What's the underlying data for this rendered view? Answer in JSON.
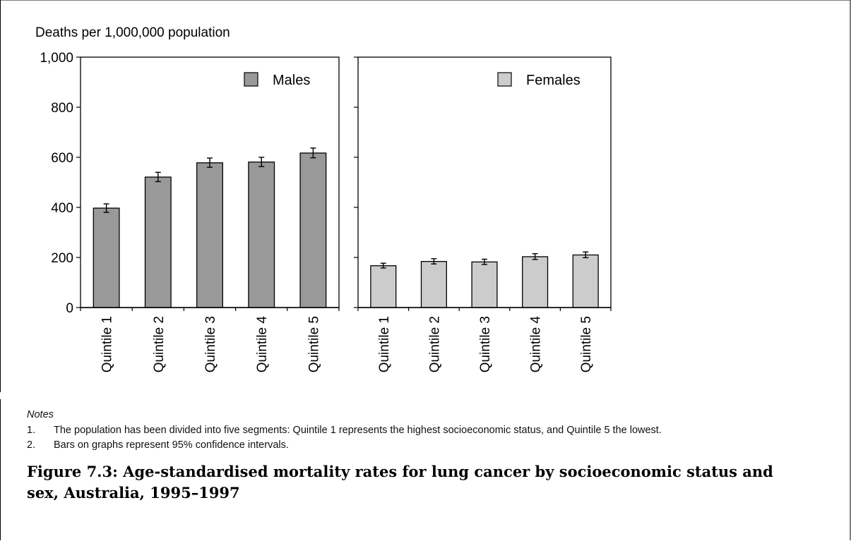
{
  "chart_data": [
    {
      "type": "bar",
      "ylabel": "Deaths per 1,000,000 population",
      "ylim": [
        0,
        1000
      ],
      "yticks": [
        0,
        200,
        400,
        600,
        800,
        1000
      ],
      "ytick_labels": [
        "0",
        "200",
        "400",
        "600",
        "800",
        "1,000"
      ],
      "grid": false,
      "legend_position": "top-right",
      "categories": [
        "Quintile 1",
        "Quintile 2",
        "Quintile 3",
        "Quintile 4",
        "Quintile 5"
      ],
      "series": [
        {
          "name": "Males",
          "color": "#999999",
          "values": [
            397,
            521,
            578,
            581,
            617
          ],
          "ci_low": [
            380,
            503,
            560,
            563,
            598
          ],
          "ci_high": [
            414,
            540,
            597,
            600,
            637
          ]
        }
      ]
    },
    {
      "type": "bar",
      "ylim": [
        0,
        1000
      ],
      "grid": false,
      "legend_position": "top-right",
      "categories": [
        "Quintile 1",
        "Quintile 2",
        "Quintile 3",
        "Quintile 4",
        "Quintile 5"
      ],
      "series": [
        {
          "name": "Females",
          "color": "#cccccc",
          "values": [
            167,
            184,
            182,
            203,
            210
          ],
          "ci_low": [
            158,
            174,
            172,
            192,
            199
          ],
          "ci_high": [
            177,
            195,
            193,
            215,
            222
          ]
        }
      ]
    }
  ],
  "notes": {
    "heading": "Notes",
    "items": [
      {
        "num": "1.",
        "text": "The population has been divided into five segments: Quintile 1 represents the highest socioeconomic status, and Quintile 5 the lowest."
      },
      {
        "num": "2.",
        "text": "Bars on graphs represent 95% confidence intervals."
      }
    ]
  },
  "caption": "Figure 7.3: Age-standardised mortality rates for lung cancer by socioeconomic status and sex, Australia, 1995–1997"
}
